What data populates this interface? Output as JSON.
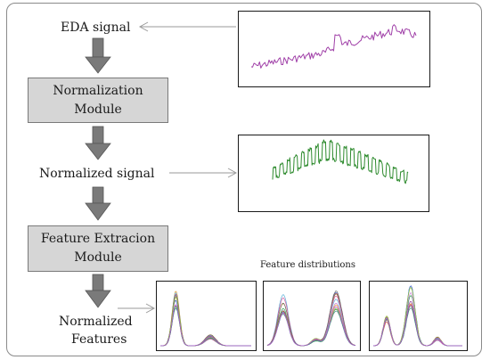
{
  "labels": {
    "eda_signal": "EDA signal",
    "normalized_signal": "Normalized signal",
    "normalized_features_line1": "Normalized",
    "normalized_features_line2": "Features",
    "feature_distributions": "Feature distributions"
  },
  "modules": {
    "normalization_line1": "Normalization",
    "normalization_line2": "Module",
    "feature_extraction_line1": "Feature Extracion",
    "feature_extraction_line2": "Module"
  },
  "colors": {
    "eda_trace": "#a040a8",
    "normalized_trace": "#2e8b2e",
    "module_fill": "#d6d6d6",
    "flow_arrow": "#7a7a7a",
    "pointer_arrow": "#9a9a9a",
    "distribution_palette": [
      "#3a5fcd",
      "#e05a5a",
      "#2e9e4f",
      "#c77dd6",
      "#e09a3a",
      "#5ab0d6",
      "#8a6d3b",
      "#d65a9e",
      "#6a6a6a",
      "#9bbb3a",
      "#4a8a8a",
      "#b05ad6"
    ]
  },
  "icons": {
    "flow": "down-arrow-icon",
    "pointer": "right-arrow-icon"
  }
}
